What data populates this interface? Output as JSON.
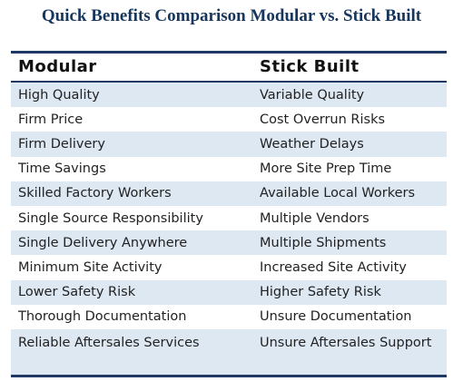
{
  "title": "Quick Benefits Comparison Modular vs. Stick Built",
  "table": {
    "headers": [
      "Modular",
      "Stick Built"
    ],
    "rows": [
      [
        "High Quality",
        "Variable Quality"
      ],
      [
        "Firm Price",
        "Cost Overrun Risks"
      ],
      [
        "Firm Delivery",
        "Weather Delays"
      ],
      [
        "Time Savings",
        "More Site Prep Time"
      ],
      [
        "Skilled Factory Workers",
        "Available Local Workers"
      ],
      [
        "Single Source Responsibility",
        "Multiple Vendors"
      ],
      [
        "Single Delivery Anywhere",
        "Multiple Shipments"
      ],
      [
        "Minimum Site Activity",
        "Increased Site Activity"
      ],
      [
        "Lower Safety Risk",
        "Higher Safety Risk"
      ],
      [
        "Thorough Documentation",
        "Unsure Documentation"
      ],
      [
        "Reliable Aftersales Services",
        "Unsure Aftersales Support"
      ]
    ]
  },
  "colors": {
    "title": "#17365d",
    "rule": "#1f3864",
    "shade": "#dde8f3"
  }
}
